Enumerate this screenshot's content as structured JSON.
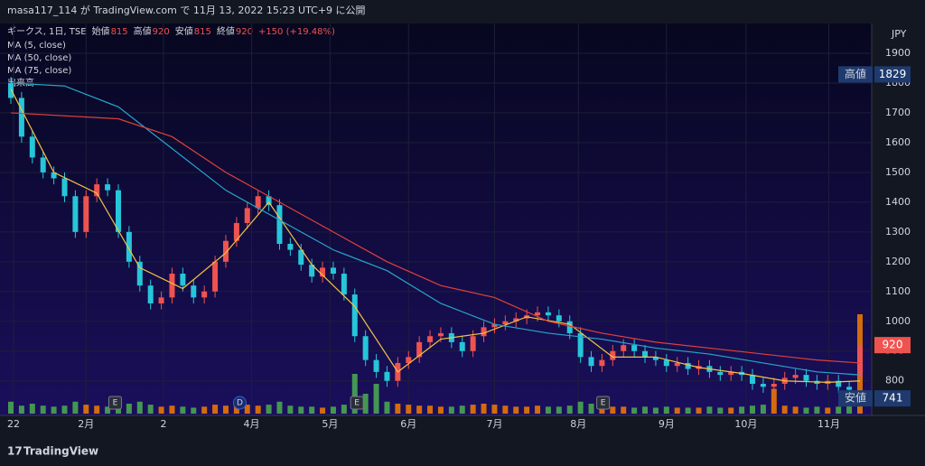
{
  "header": {
    "published": "masa117_114 が TradingView.com で 11月 13, 2022 15:23 UTC+9 に公開"
  },
  "legend": {
    "symbol": "ギークス, 1日, TSE",
    "open_label": "始値",
    "open": 815,
    "high_label": "高値",
    "high": 920,
    "low_label": "安値",
    "low": 815,
    "close_label": "終値",
    "close": 920,
    "change": "+150 (+19.48%)",
    "indicators": [
      "MA (5, close)",
      "MA (50, close)",
      "MA (75, close)",
      "出来高"
    ]
  },
  "footer": {
    "brand": "TradingView"
  },
  "chart_data": {
    "type": "candlestick",
    "currency": "JPY",
    "open": [
      1800,
      1750,
      1620,
      1550,
      1500,
      1480,
      1420,
      1300,
      1420,
      1460,
      1440,
      1300,
      1200,
      1120,
      1060,
      1080,
      1160,
      1120,
      1080,
      1100,
      1200,
      1270,
      1330,
      1380,
      1420,
      1390,
      1260,
      1240,
      1190,
      1150,
      1180,
      1160,
      1090,
      950,
      870,
      830,
      800,
      860,
      880,
      930,
      950,
      960,
      930,
      900,
      950,
      980,
      990,
      1000,
      1010,
      1020,
      1030,
      1020,
      1000,
      960,
      880,
      850,
      870,
      900,
      920,
      900,
      880,
      870,
      850,
      860,
      840,
      850,
      830,
      820,
      830,
      820,
      790,
      780,
      790,
      810,
      820,
      800,
      790,
      800,
      780,
      815
    ],
    "high": [
      1820,
      1770,
      1640,
      1570,
      1520,
      1500,
      1440,
      1440,
      1480,
      1480,
      1460,
      1320,
      1220,
      1140,
      1100,
      1180,
      1180,
      1140,
      1120,
      1220,
      1290,
      1350,
      1400,
      1440,
      1440,
      1410,
      1280,
      1260,
      1210,
      1200,
      1200,
      1180,
      1110,
      970,
      890,
      850,
      880,
      900,
      950,
      970,
      980,
      980,
      950,
      970,
      1000,
      1010,
      1020,
      1030,
      1040,
      1050,
      1050,
      1040,
      1020,
      980,
      900,
      890,
      920,
      940,
      940,
      920,
      900,
      890,
      880,
      880,
      870,
      870,
      850,
      850,
      850,
      840,
      810,
      810,
      830,
      840,
      840,
      820,
      820,
      820,
      800,
      920
    ],
    "low": [
      1730,
      1600,
      1530,
      1480,
      1460,
      1400,
      1280,
      1280,
      1400,
      1420,
      1280,
      1180,
      1100,
      1040,
      1040,
      1060,
      1100,
      1060,
      1060,
      1080,
      1180,
      1250,
      1310,
      1360,
      1370,
      1240,
      1220,
      1170,
      1130,
      1130,
      1140,
      1070,
      930,
      850,
      810,
      780,
      780,
      840,
      860,
      910,
      930,
      910,
      880,
      880,
      930,
      960,
      970,
      980,
      990,
      1000,
      1000,
      980,
      940,
      860,
      830,
      830,
      850,
      880,
      880,
      860,
      850,
      830,
      830,
      820,
      820,
      810,
      800,
      800,
      800,
      770,
      760,
      760,
      770,
      790,
      780,
      770,
      770,
      760,
      750,
      815
    ],
    "close": [
      1750,
      1620,
      1550,
      1500,
      1480,
      1420,
      1300,
      1420,
      1460,
      1440,
      1300,
      1200,
      1120,
      1060,
      1080,
      1160,
      1120,
      1080,
      1100,
      1200,
      1270,
      1330,
      1380,
      1420,
      1390,
      1260,
      1240,
      1190,
      1150,
      1180,
      1160,
      1090,
      950,
      870,
      830,
      800,
      860,
      880,
      930,
      950,
      960,
      930,
      900,
      950,
      980,
      990,
      1000,
      1010,
      1020,
      1030,
      1020,
      1000,
      960,
      880,
      850,
      870,
      900,
      920,
      900,
      880,
      870,
      850,
      860,
      840,
      850,
      830,
      820,
      830,
      820,
      790,
      780,
      790,
      810,
      820,
      800,
      790,
      800,
      780,
      770,
      920
    ],
    "volume": [
      12,
      8,
      10,
      8,
      7,
      8,
      12,
      9,
      8,
      7,
      9,
      10,
      12,
      9,
      7,
      8,
      7,
      6,
      7,
      9,
      8,
      10,
      9,
      8,
      9,
      12,
      8,
      7,
      7,
      6,
      7,
      9,
      40,
      20,
      30,
      12,
      10,
      9,
      8,
      8,
      7,
      7,
      8,
      9,
      10,
      9,
      8,
      7,
      7,
      8,
      7,
      7,
      8,
      12,
      10,
      8,
      7,
      7,
      6,
      7,
      6,
      7,
      6,
      6,
      6,
      7,
      6,
      6,
      7,
      8,
      9,
      25,
      8,
      7,
      6,
      7,
      6,
      7,
      8,
      100
    ],
    "vlim": [
      0,
      100
    ],
    "xlim": [
      0,
      79
    ],
    "ylim": [
      690,
      2000
    ],
    "yticks": [
      800,
      900,
      1000,
      1100,
      1200,
      1300,
      1400,
      1500,
      1600,
      1700,
      1800,
      1900
    ],
    "xticks": [
      {
        "value": 0.25,
        "label": "22"
      },
      {
        "value": 7,
        "label": "2月"
      },
      {
        "value": 14.2,
        "label": "2"
      },
      {
        "value": 22.4,
        "label": "4月"
      },
      {
        "value": 29.7,
        "label": "5月"
      },
      {
        "value": 37,
        "label": "6月"
      },
      {
        "value": 45,
        "label": "7月"
      },
      {
        "value": 52.8,
        "label": "8月"
      },
      {
        "value": 61,
        "label": "9月"
      },
      {
        "value": 68.4,
        "label": "10月"
      },
      {
        "value": 76.1,
        "label": "11月"
      }
    ],
    "grid": true,
    "up_color": "#ef5350",
    "down_color": "#26c6da",
    "lines": [
      {
        "name": "MA (5, close)",
        "color": "#f5c242",
        "x": [
          0,
          4,
          8,
          12,
          16,
          20,
          24,
          28,
          32,
          36,
          40,
          44,
          48,
          52,
          56,
          60,
          64,
          68,
          72,
          76,
          79
        ],
        "values": [
          1780,
          1500,
          1430,
          1180,
          1110,
          1230,
          1400,
          1190,
          1050,
          830,
          940,
          960,
          1015,
          990,
          880,
          880,
          845,
          825,
          800,
          795,
          800
        ]
      },
      {
        "name": "MA (50, close)",
        "color": "#26a6c9",
        "x": [
          0,
          5,
          10,
          15,
          20,
          25,
          30,
          35,
          40,
          45,
          50,
          55,
          60,
          65,
          70,
          75,
          79
        ],
        "values": [
          1800,
          1790,
          1720,
          1580,
          1440,
          1340,
          1240,
          1170,
          1060,
          990,
          960,
          940,
          910,
          890,
          860,
          830,
          820
        ]
      },
      {
        "name": "MA (75, close)",
        "color": "#e0403a",
        "x": [
          0,
          10,
          15,
          20,
          25,
          30,
          35,
          40,
          45,
          50,
          55,
          60,
          65,
          70,
          75,
          79
        ],
        "values": [
          1700,
          1680,
          1620,
          1500,
          1400,
          1300,
          1200,
          1120,
          1080,
          1000,
          960,
          930,
          910,
          890,
          870,
          860
        ]
      }
    ],
    "price_tags": [
      {
        "label": "高値",
        "value": 1829,
        "color": "#1f3a6e"
      },
      {
        "value": 920,
        "color": "#ef5350"
      },
      {
        "label": "安値",
        "value": 741,
        "color": "#1f3a6e"
      }
    ],
    "events": [
      {
        "label": "E",
        "x": 9.7
      },
      {
        "label": "D",
        "x": 21.3
      },
      {
        "label": "E",
        "x": 32.2
      },
      {
        "label": "E",
        "x": 55.1
      }
    ]
  }
}
